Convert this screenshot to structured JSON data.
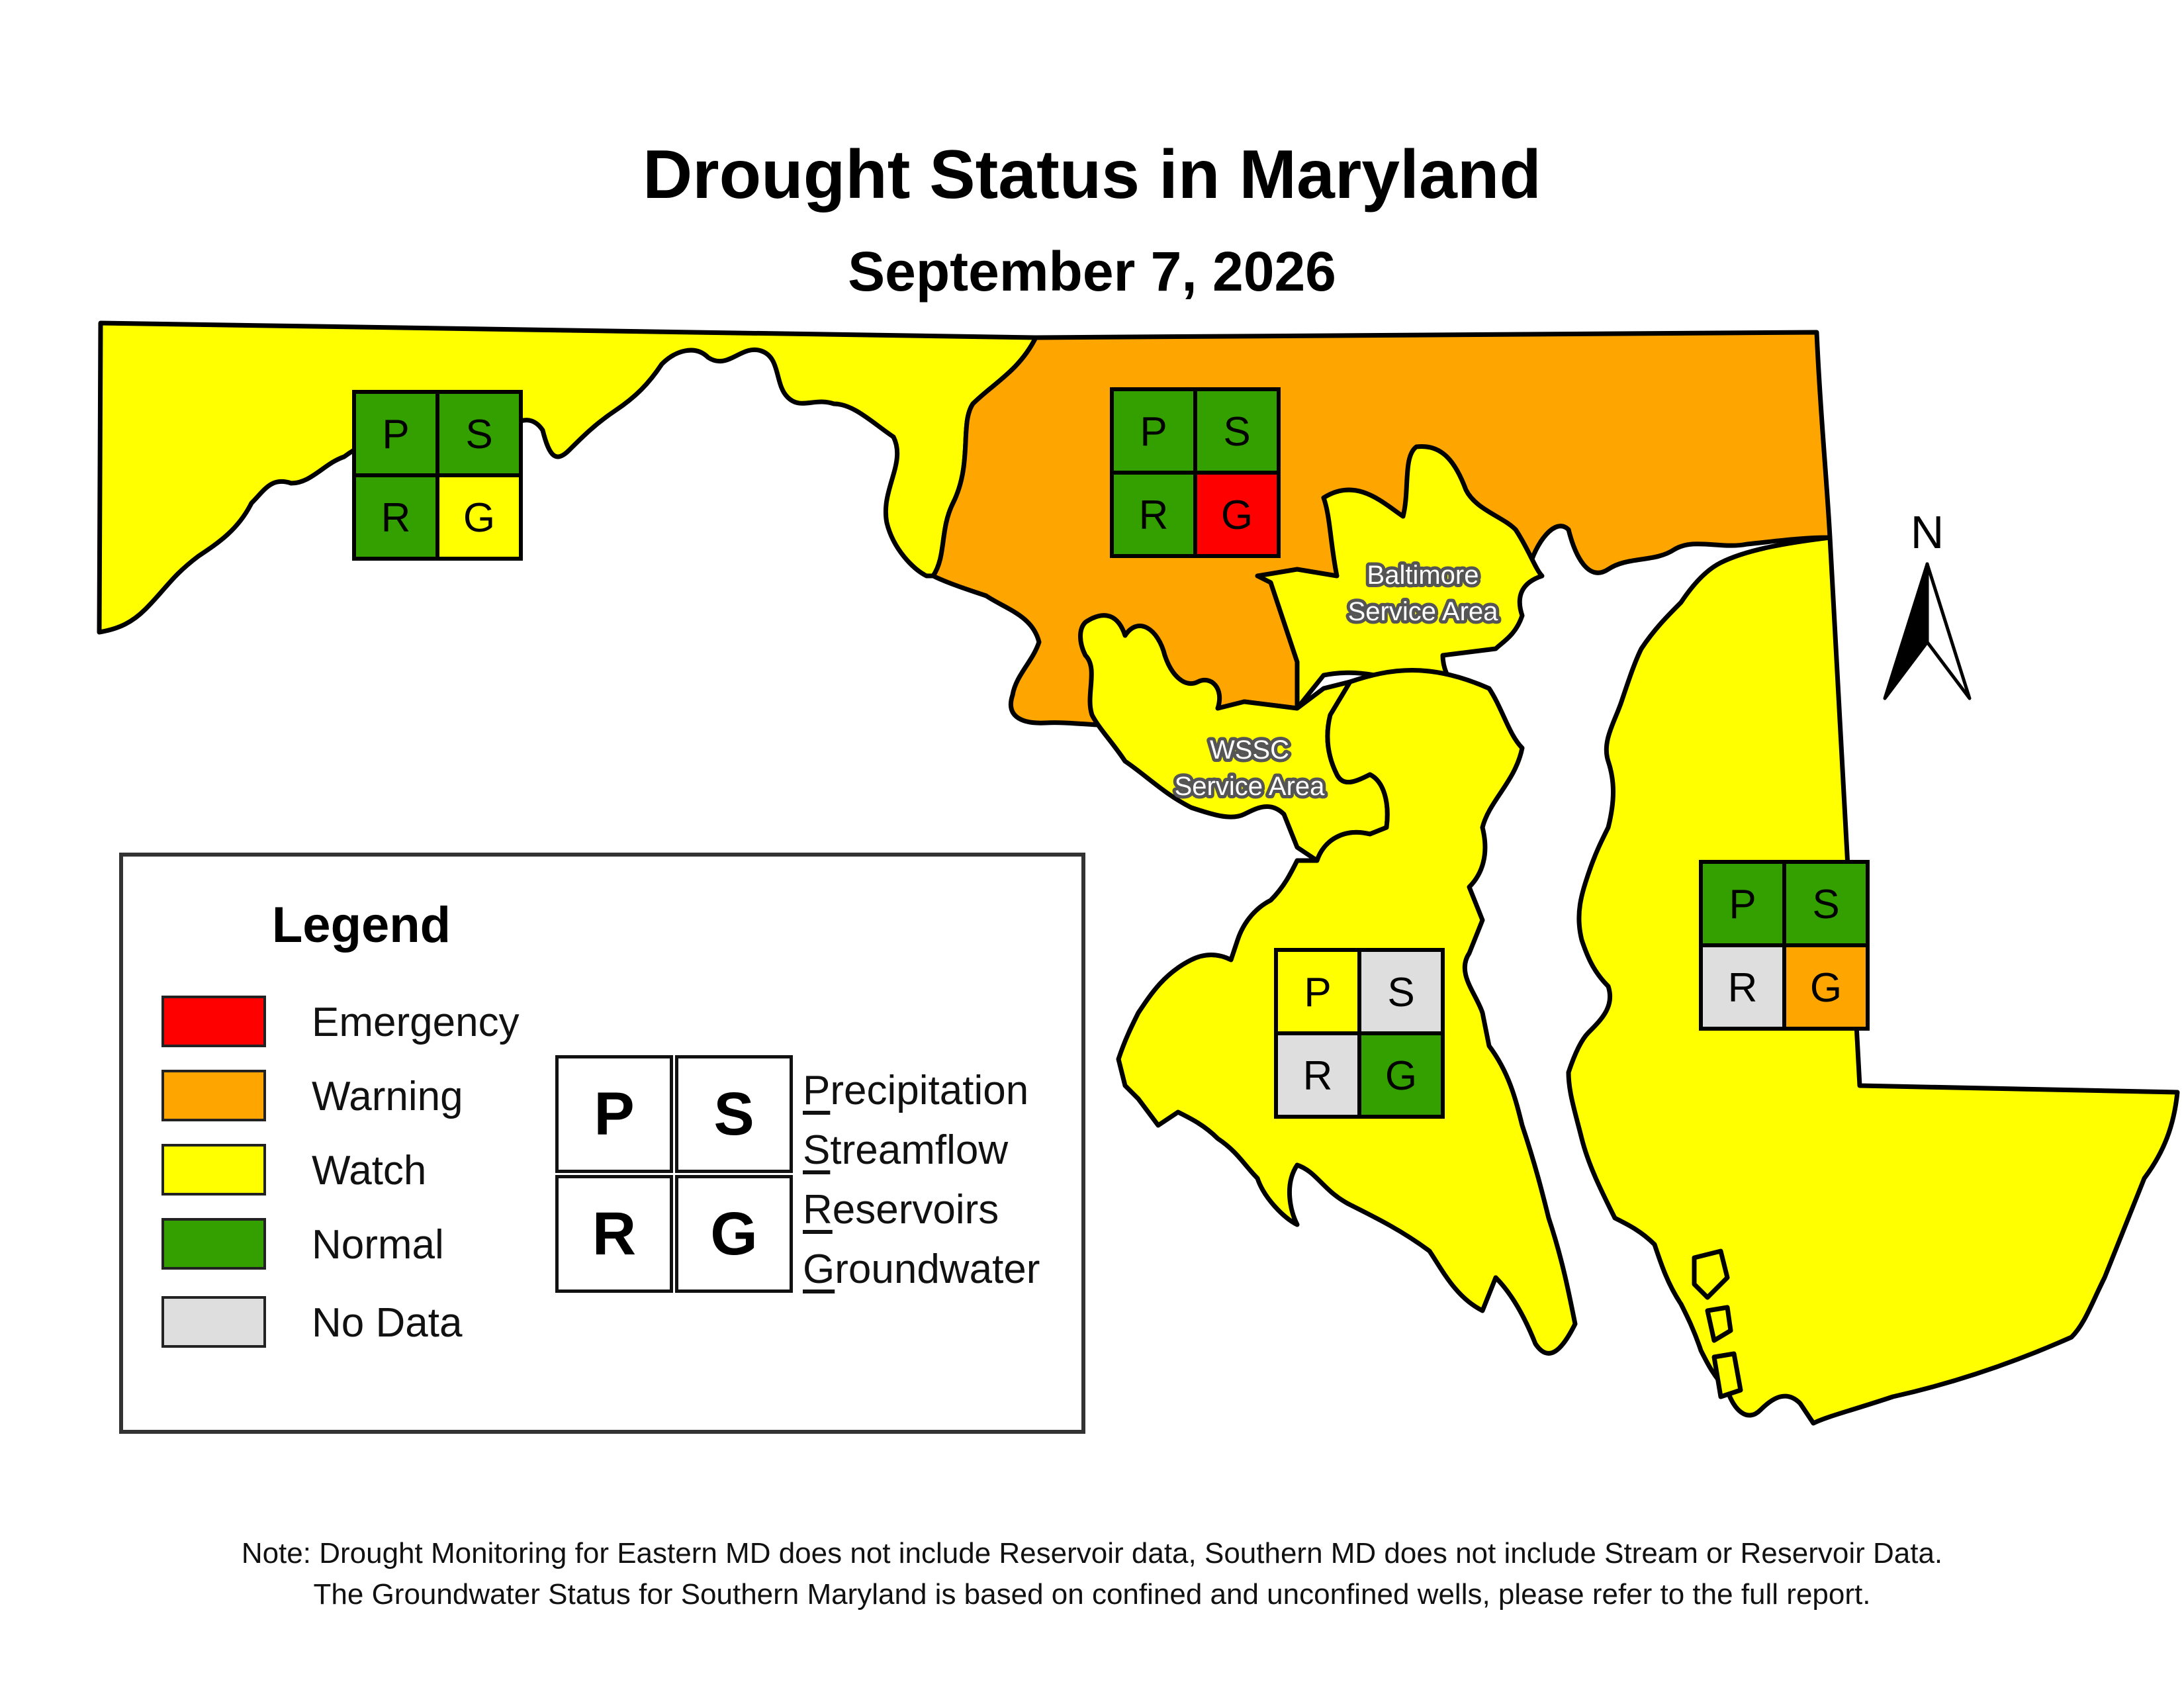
{
  "title": "Drought Status in Maryland",
  "date": "September 7, 2026",
  "colors": {
    "emergency": "#ff0000",
    "warning": "#ffa500",
    "watch": "#ffff00",
    "normal": "#33a000",
    "no_data": "#dedede"
  },
  "regions": {
    "western": {
      "status": "watch"
    },
    "central": {
      "status": "warning"
    },
    "baltimore_service_area": {
      "status": "watch",
      "label_line1": "Baltimore",
      "label_line2": "Service Area"
    },
    "wssc_service_area": {
      "status": "watch",
      "label_line1": "WSSC",
      "label_line2": "Service Area"
    },
    "southern": {
      "status": "watch"
    },
    "eastern": {
      "status": "watch"
    }
  },
  "indicator_boxes": {
    "western": {
      "P": "normal",
      "S": "normal",
      "R": "normal",
      "G": "watch"
    },
    "central": {
      "P": "normal",
      "S": "normal",
      "R": "normal",
      "G": "emergency"
    },
    "southern": {
      "P": "watch",
      "S": "no_data",
      "R": "no_data",
      "G": "normal"
    },
    "eastern": {
      "P": "normal",
      "S": "normal",
      "R": "no_data",
      "G": "warning"
    }
  },
  "box_letters": {
    "P": "P",
    "S": "S",
    "R": "R",
    "G": "G"
  },
  "north_arrow": {
    "label": "N",
    "icon": "north-arrow-icon"
  },
  "legend": {
    "title": "Legend",
    "items": [
      {
        "label": "Emergency",
        "status": "emergency"
      },
      {
        "label": "Warning",
        "status": "warning"
      },
      {
        "label": "Watch",
        "status": "watch"
      },
      {
        "label": "Normal",
        "status": "normal"
      },
      {
        "label": "No Data",
        "status": "no_data"
      }
    ],
    "key": [
      {
        "letter": "P",
        "initial": "P",
        "rest": "recipitation"
      },
      {
        "letter": "S",
        "initial": "S",
        "rest": "treamflow"
      },
      {
        "letter": "R",
        "initial": "R",
        "rest": "eservoirs"
      },
      {
        "letter": "G",
        "initial": "G",
        "rest": "roundwater"
      }
    ]
  },
  "note": {
    "line1": "Note: Drought Monitoring for Eastern MD does not include Reservoir data, Southern MD does not include Stream or Reservoir Data.",
    "line2": "The Groundwater Status for Southern Maryland is based on confined and unconfined wells, please refer to the full report."
  }
}
